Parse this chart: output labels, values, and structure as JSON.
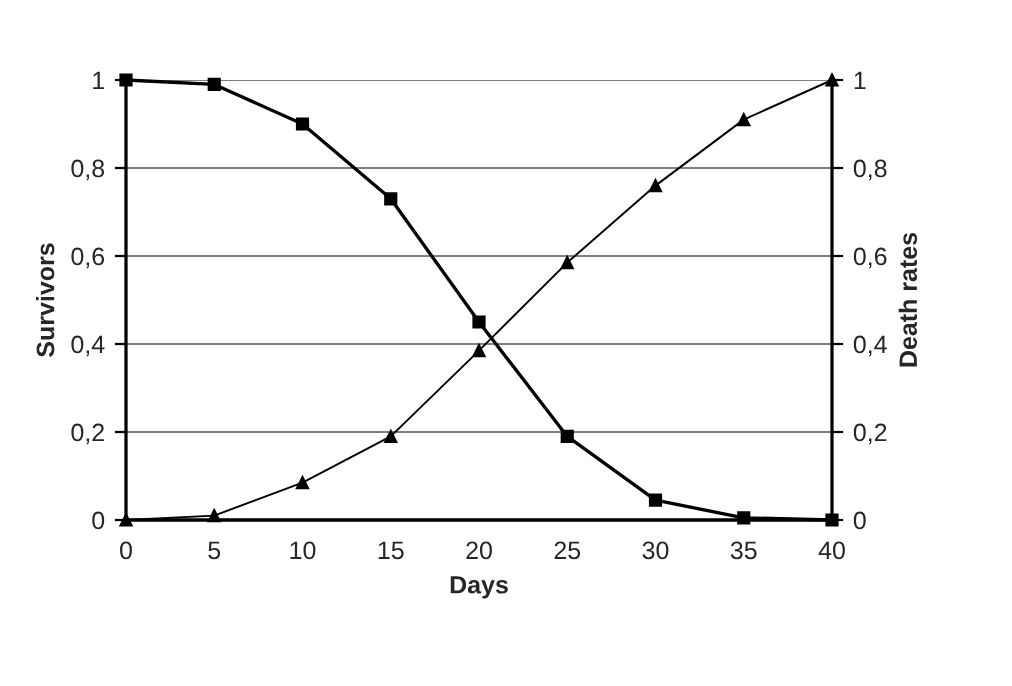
{
  "chart_data": {
    "type": "line",
    "xlabel": "Days",
    "ylabel": "Survivors",
    "y2label": "Death rates",
    "x": [
      0,
      5,
      10,
      15,
      20,
      25,
      30,
      35,
      40
    ],
    "series": [
      {
        "color": "#000000",
        "marker": "square",
        "values": [
          1,
          0.99,
          0.9,
          0.73,
          0.45,
          0.19,
          0.045,
          0.005,
          0
        ]
      },
      {
        "color": "#000000",
        "marker": "triangle",
        "axis": "y2",
        "values": [
          0,
          0.01,
          0.085,
          0.19,
          0.385,
          0.585,
          0.76,
          0.91,
          1.0
        ]
      }
    ],
    "xlim": [
      0,
      40
    ],
    "xticks": [
      0,
      5,
      10,
      15,
      20,
      25,
      30,
      35,
      40
    ],
    "ylim": [
      0,
      1
    ],
    "yticks": [
      0,
      {
        "value": 0.2,
        "label": "0,2"
      },
      {
        "value": 0.4,
        "label": "0,4"
      },
      {
        "value": 0.6,
        "label": "0,6"
      },
      {
        "value": 0.8,
        "label": "0,8"
      },
      1
    ],
    "y2lim": [
      0,
      1
    ],
    "y2ticks": [
      0,
      {
        "value": 0.2,
        "label": "0,2"
      },
      {
        "value": 0.4,
        "label": "0,4"
      },
      {
        "value": 0.6,
        "label": "0,6"
      },
      {
        "value": 0.8,
        "label": "0,8"
      },
      1
    ],
    "grid": "y",
    "line_style": "solid"
  }
}
